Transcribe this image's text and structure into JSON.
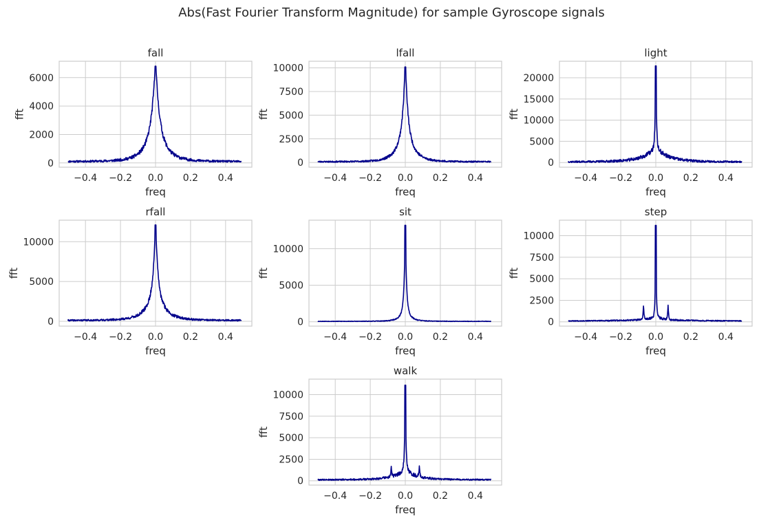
{
  "figure": {
    "title": "Abs(Fast Fourier Transform Magnitude) for sample Gyroscope signals"
  },
  "style": {
    "line_color": "#00008b",
    "grid_color": "#cccccc",
    "frame_color": "#cccccc",
    "text_color": "#262626",
    "background": "#ffffff"
  },
  "chart_data": [
    {
      "type": "line",
      "title": "fall",
      "xlabel": "freq",
      "ylabel": "fft",
      "xlim": [
        -0.55,
        0.55
      ],
      "ylim": [
        -300,
        7150
      ],
      "xticks": [
        -0.4,
        -0.2,
        0.0,
        0.2,
        0.4
      ],
      "xtick_labels": [
        "−0.4",
        "−0.2",
        "0.0",
        "0.2",
        "0.4"
      ],
      "yticks": [
        0,
        2000,
        4000,
        6000
      ],
      "ytick_labels": [
        "0",
        "2000",
        "4000",
        "6000"
      ],
      "grid": true,
      "series": [
        {
          "peak": 6800,
          "shoulder": 2700,
          "near_width": 0.02,
          "shoulder_width": 0.05,
          "wide_level": 350,
          "wide_width": 0.12,
          "floor": 100,
          "noise": 160,
          "seed": 11
        }
      ]
    },
    {
      "type": "line",
      "title": "lfall",
      "xlabel": "freq",
      "ylabel": "fft",
      "xlim": [
        -0.55,
        0.55
      ],
      "ylim": [
        -500,
        10700
      ],
      "xticks": [
        -0.4,
        -0.2,
        0.0,
        0.2,
        0.4
      ],
      "xtick_labels": [
        "−0.4",
        "−0.2",
        "0.0",
        "0.2",
        "0.4"
      ],
      "yticks": [
        0,
        2500,
        5000,
        7500,
        10000
      ],
      "ytick_labels": [
        "0",
        "2500",
        "5000",
        "7500",
        "10000"
      ],
      "grid": true,
      "series": [
        {
          "peak": 10100,
          "shoulder": 4300,
          "near_width": 0.012,
          "shoulder_width": 0.035,
          "wide_level": 900,
          "wide_width": 0.08,
          "floor": 80,
          "noise": 200,
          "seed": 23
        }
      ]
    },
    {
      "type": "line",
      "title": "light",
      "xlabel": "freq",
      "ylabel": "fft",
      "xlim": [
        -0.55,
        0.55
      ],
      "ylim": [
        -1100,
        23900
      ],
      "xticks": [
        -0.4,
        -0.2,
        0.0,
        0.2,
        0.4
      ],
      "xtick_labels": [
        "−0.4",
        "−0.2",
        "0.0",
        "0.2",
        "0.4"
      ],
      "yticks": [
        0,
        5000,
        10000,
        15000,
        20000
      ],
      "ytick_labels": [
        "0",
        "5000",
        "10000",
        "15000",
        "20000"
      ],
      "grid": true,
      "series": [
        {
          "peak": 22800,
          "shoulder": 2900,
          "near_width": 0.004,
          "shoulder_width": 0.06,
          "wide_level": 700,
          "wide_width": 0.15,
          "floor": 150,
          "noise": 450,
          "seed": 37
        }
      ]
    },
    {
      "type": "line",
      "title": "rfall",
      "xlabel": "freq",
      "ylabel": "fft",
      "xlim": [
        -0.55,
        0.55
      ],
      "ylim": [
        -600,
        12700
      ],
      "xticks": [
        -0.4,
        -0.2,
        0.0,
        0.2,
        0.4
      ],
      "xtick_labels": [
        "−0.4",
        "−0.2",
        "0.0",
        "0.2",
        "0.4"
      ],
      "yticks": [
        0,
        5000,
        10000
      ],
      "ytick_labels": [
        "0",
        "5000",
        "10000"
      ],
      "grid": true,
      "series": [
        {
          "peak": 12100,
          "shoulder": 4500,
          "near_width": 0.01,
          "shoulder_width": 0.035,
          "wide_level": 1300,
          "wide_width": 0.09,
          "floor": 120,
          "noise": 260,
          "seed": 41
        }
      ]
    },
    {
      "type": "line",
      "title": "sit",
      "xlabel": "freq",
      "ylabel": "fft",
      "xlim": [
        -0.55,
        0.55
      ],
      "ylim": [
        -600,
        13900
      ],
      "xticks": [
        -0.4,
        -0.2,
        0.0,
        0.2,
        0.4
      ],
      "xtick_labels": [
        "−0.4",
        "−0.2",
        "0.0",
        "0.2",
        "0.4"
      ],
      "yticks": [
        0,
        5000,
        10000
      ],
      "ytick_labels": [
        "0",
        "5000",
        "10000"
      ],
      "grid": true,
      "series": [
        {
          "peak": 13200,
          "shoulder": 2400,
          "near_width": 0.006,
          "shoulder_width": 0.02,
          "wide_level": 400,
          "wide_width": 0.06,
          "floor": 60,
          "noise": 90,
          "seed": 53
        }
      ]
    },
    {
      "type": "line",
      "title": "step",
      "xlabel": "freq",
      "ylabel": "fft",
      "xlim": [
        -0.55,
        0.55
      ],
      "ylim": [
        -500,
        11800
      ],
      "xticks": [
        -0.4,
        -0.2,
        0.0,
        0.2,
        0.4
      ],
      "xtick_labels": [
        "−0.4",
        "−0.2",
        "0.0",
        "0.2",
        "0.4"
      ],
      "yticks": [
        0,
        2500,
        5000,
        7500,
        10000
      ],
      "ytick_labels": [
        "0",
        "2500",
        "5000",
        "7500",
        "10000"
      ],
      "grid": true,
      "series": [
        {
          "peak": 11200,
          "shoulder": 500,
          "near_width": 0.003,
          "shoulder_width": 0.02,
          "wide_level": 250,
          "wide_width": 0.15,
          "floor": 100,
          "noise": 110,
          "seed": 67,
          "side_peaks": [
            [
              -0.07,
              1850
            ],
            [
              0.07,
              1850
            ]
          ]
        }
      ]
    },
    {
      "type": "line",
      "title": "walk",
      "xlabel": "freq",
      "ylabel": "fft",
      "xlim": [
        -0.55,
        0.55
      ],
      "ylim": [
        -500,
        11800
      ],
      "xticks": [
        -0.4,
        -0.2,
        0.0,
        0.2,
        0.4
      ],
      "xtick_labels": [
        "−0.4",
        "−0.2",
        "0.0",
        "0.2",
        "0.4"
      ],
      "yticks": [
        0,
        2500,
        5000,
        7500,
        10000
      ],
      "ytick_labels": [
        "0",
        "2500",
        "5000",
        "7500",
        "10000"
      ],
      "grid": true,
      "series": [
        {
          "peak": 11100,
          "shoulder": 700,
          "near_width": 0.004,
          "shoulder_width": 0.04,
          "wide_level": 600,
          "wide_width": 0.1,
          "floor": 120,
          "noise": 200,
          "seed": 79,
          "side_peaks": [
            [
              -0.08,
              1300
            ],
            [
              0.08,
              1300
            ]
          ]
        }
      ]
    }
  ]
}
